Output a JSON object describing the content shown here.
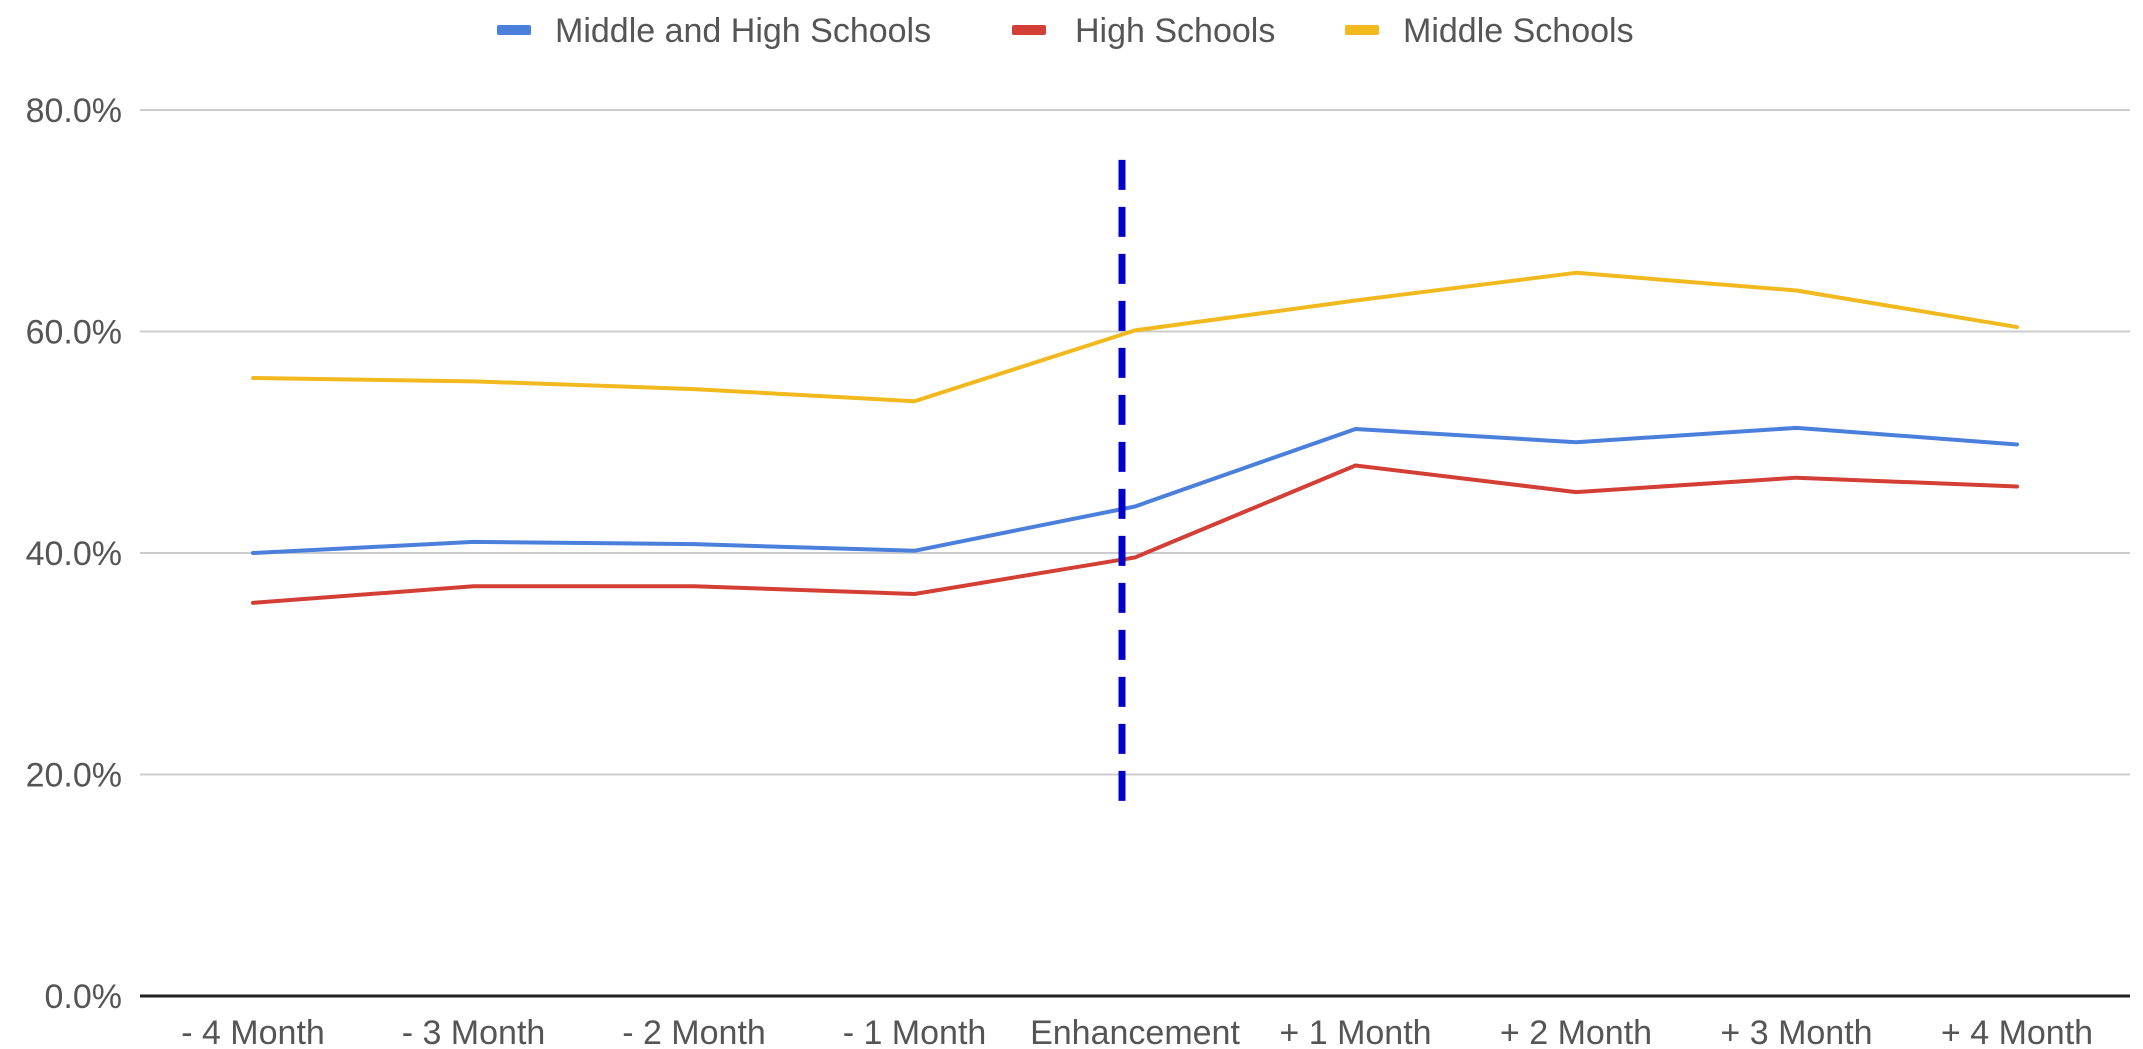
{
  "chart_data": {
    "type": "line",
    "title": "",
    "xlabel": "",
    "ylabel": "",
    "categories": [
      "- 4 Month",
      "- 3 Month",
      "- 2 Month",
      "- 1 Month",
      "Enhancement",
      "+ 1 Month",
      "+ 2 Month",
      "+ 3 Month",
      "+ 4 Month"
    ],
    "ylim": [
      0,
      80
    ],
    "yticks": [
      0,
      20,
      40,
      60,
      80
    ],
    "ytick_labels": [
      "0.0%",
      "20.0%",
      "40.0%",
      "60.0%",
      "80.0%"
    ],
    "grid": true,
    "legend_position": "top-center",
    "series": [
      {
        "name": "Middle and High Schools",
        "color": "#4a7fdc",
        "values": [
          40.0,
          41.0,
          40.8,
          40.2,
          44.2,
          51.2,
          50.0,
          51.3,
          49.8
        ]
      },
      {
        "name": "High Schools",
        "color": "#d33f35",
        "values": [
          35.5,
          37.0,
          37.0,
          36.3,
          39.6,
          47.9,
          45.5,
          46.8,
          46.0
        ]
      },
      {
        "name": "Middle Schools",
        "color": "#f1b91e",
        "values": [
          55.8,
          55.5,
          54.8,
          53.7,
          60.1,
          62.8,
          65.3,
          63.7,
          60.4
        ]
      }
    ],
    "annotations": [
      {
        "type": "vertical-dashed-line",
        "at_category": "Enhancement",
        "color": "#0000c8",
        "y_range": [
          16.5,
          75.5
        ]
      }
    ]
  }
}
